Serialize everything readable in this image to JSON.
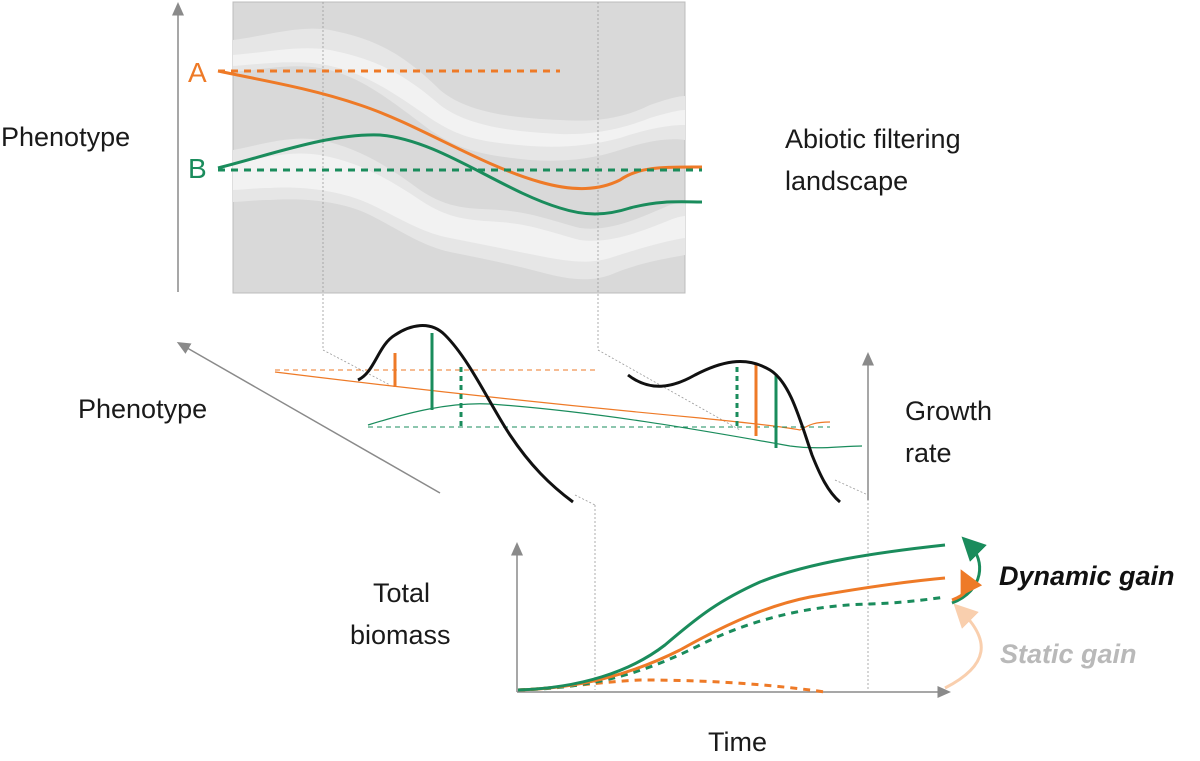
{
  "labels": {
    "phenotype_top": "Phenotype",
    "phenotype_mid": "Phenotype",
    "abiotic_line1": "Abiotic filtering",
    "abiotic_line2": "landscape",
    "growth_line1": "Growth",
    "growth_line2": "rate",
    "biomass_line1": "Total",
    "biomass_line2": "biomass",
    "time": "Time",
    "dynamic_gain": "Dynamic gain",
    "static_gain": "Static gain",
    "genotype_a": "A",
    "genotype_b": "B"
  },
  "colors": {
    "orange": "#ee7a27",
    "green": "#1a8c5c",
    "black": "#111111",
    "axis": "#8a8a8a",
    "landscape_dark": "#d9d9d9",
    "landscape_mid": "#e6e6e6",
    "landscape_light": "#f2f2f2",
    "static_arrow": "#f9cfae"
  }
}
